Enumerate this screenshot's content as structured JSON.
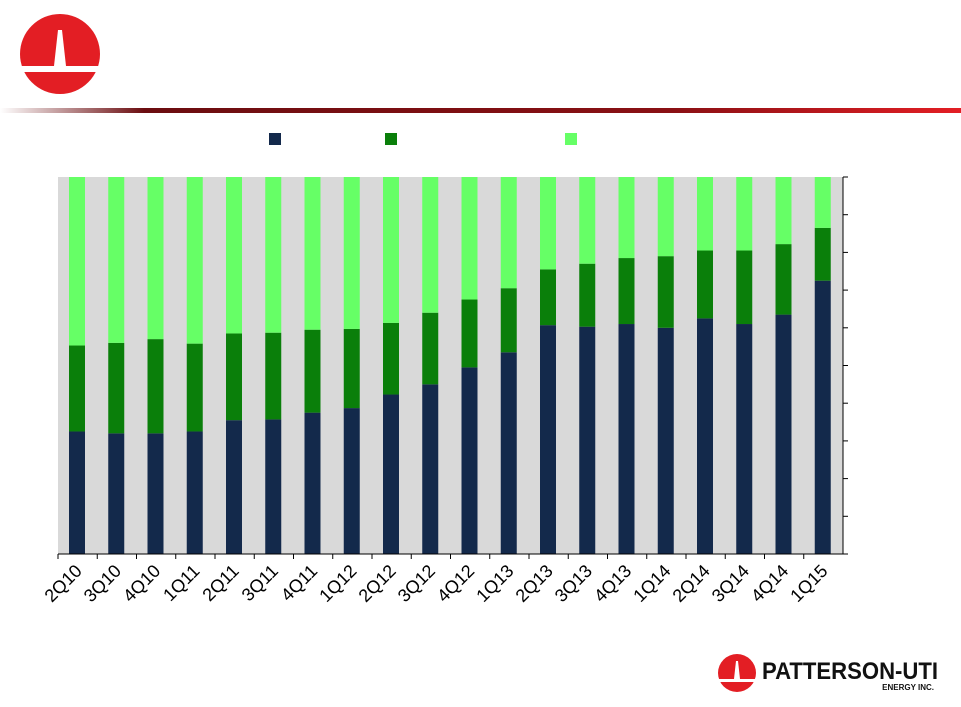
{
  "brand": {
    "name": "PATTERSON-UTI",
    "subname": "ENERGY INC.",
    "logo_icon": "patterson-uti-derrick-icon",
    "logo_color": "#e31e24"
  },
  "colors": {
    "header_rule_dark": "#6b0d10",
    "header_rule_light": "#e31e24",
    "plot_background": "#d9d9d9"
  },
  "chart_data": {
    "type": "bar",
    "stacked": true,
    "normalized": true,
    "categories": [
      "2Q10",
      "3Q10",
      "4Q10",
      "1Q11",
      "2Q11",
      "3Q11",
      "4Q11",
      "1Q12",
      "2Q12",
      "3Q12",
      "4Q12",
      "1Q13",
      "2Q13",
      "3Q13",
      "4Q13",
      "1Q14",
      "2Q14",
      "3Q14",
      "4Q14",
      "1Q15"
    ],
    "ylim": [
      0,
      1
    ],
    "grid": false,
    "legend_position": "top",
    "series": [
      {
        "color": "#13294b",
        "values": [
          0.325,
          0.32,
          0.32,
          0.325,
          0.355,
          0.357,
          0.375,
          0.387,
          0.423,
          0.45,
          0.495,
          0.535,
          0.607,
          0.603,
          0.61,
          0.6,
          0.625,
          0.61,
          0.635,
          0.725
        ]
      },
      {
        "color": "#0a7f0a",
        "values": [
          0.228,
          0.24,
          0.25,
          0.233,
          0.23,
          0.23,
          0.22,
          0.21,
          0.19,
          0.19,
          0.18,
          0.17,
          0.148,
          0.167,
          0.175,
          0.19,
          0.18,
          0.195,
          0.187,
          0.14
        ]
      },
      {
        "color": "#66ff66",
        "values": [
          0.447,
          0.44,
          0.43,
          0.442,
          0.415,
          0.413,
          0.405,
          0.403,
          0.387,
          0.36,
          0.325,
          0.295,
          0.245,
          0.23,
          0.215,
          0.21,
          0.195,
          0.195,
          0.178,
          0.135
        ]
      }
    ]
  }
}
